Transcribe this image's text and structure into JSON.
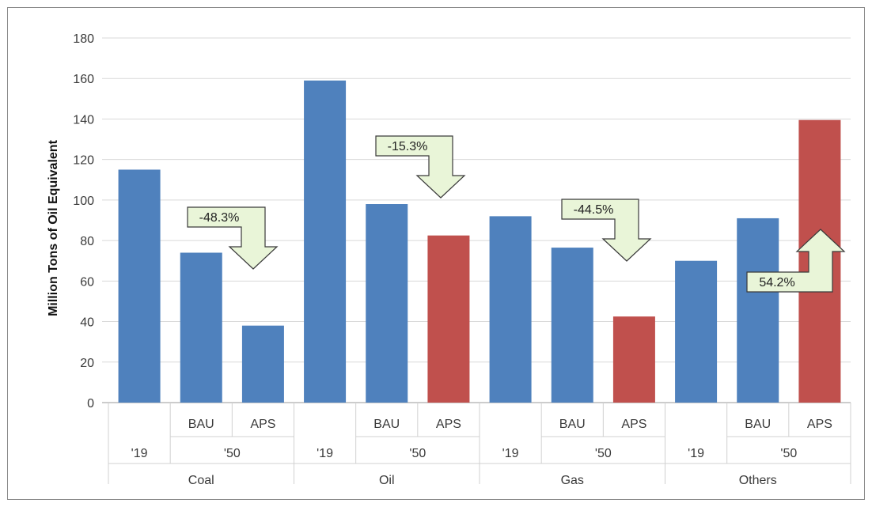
{
  "chart_data": {
    "type": "bar",
    "title": "",
    "ylabel": "Million Tons of Oil Equivalent",
    "xlabel": "",
    "ylim": [
      0,
      180
    ],
    "yticks": [
      0,
      20,
      40,
      60,
      80,
      100,
      120,
      140,
      160,
      180
    ],
    "grid": true,
    "legend": "none",
    "colors": {
      "baseline": "#4f81bd",
      "aps": "#c0504d"
    },
    "groups": [
      {
        "name": "Coal",
        "bars": [
          {
            "year": "'19",
            "scenario": "",
            "value": 115,
            "kind": "baseline"
          },
          {
            "year": "'50",
            "scenario": "BAU",
            "value": 74,
            "kind": "baseline"
          },
          {
            "year": "'50",
            "scenario": "APS",
            "value": 38,
            "kind": "baseline"
          }
        ],
        "change": {
          "label": "-48.3%",
          "direction": "down"
        }
      },
      {
        "name": "Oil",
        "bars": [
          {
            "year": "'19",
            "scenario": "",
            "value": 159,
            "kind": "baseline"
          },
          {
            "year": "'50",
            "scenario": "BAU",
            "value": 98,
            "kind": "baseline"
          },
          {
            "year": "'50",
            "scenario": "APS",
            "value": 82.5,
            "kind": "aps"
          }
        ],
        "change": {
          "label": "-15.3%",
          "direction": "down"
        }
      },
      {
        "name": "Gas",
        "bars": [
          {
            "year": "'19",
            "scenario": "",
            "value": 92,
            "kind": "baseline"
          },
          {
            "year": "'50",
            "scenario": "BAU",
            "value": 76.5,
            "kind": "baseline"
          },
          {
            "year": "'50",
            "scenario": "APS",
            "value": 42.5,
            "kind": "aps"
          }
        ],
        "change": {
          "label": "-44.5%",
          "direction": "down"
        }
      },
      {
        "name": "Others",
        "bars": [
          {
            "year": "'19",
            "scenario": "",
            "value": 70,
            "kind": "baseline"
          },
          {
            "year": "'50",
            "scenario": "BAU",
            "value": 91,
            "kind": "baseline"
          },
          {
            "year": "'50",
            "scenario": "APS",
            "value": 139.5,
            "kind": "aps"
          }
        ],
        "change": {
          "label": "54.2%",
          "direction": "up"
        }
      }
    ]
  }
}
